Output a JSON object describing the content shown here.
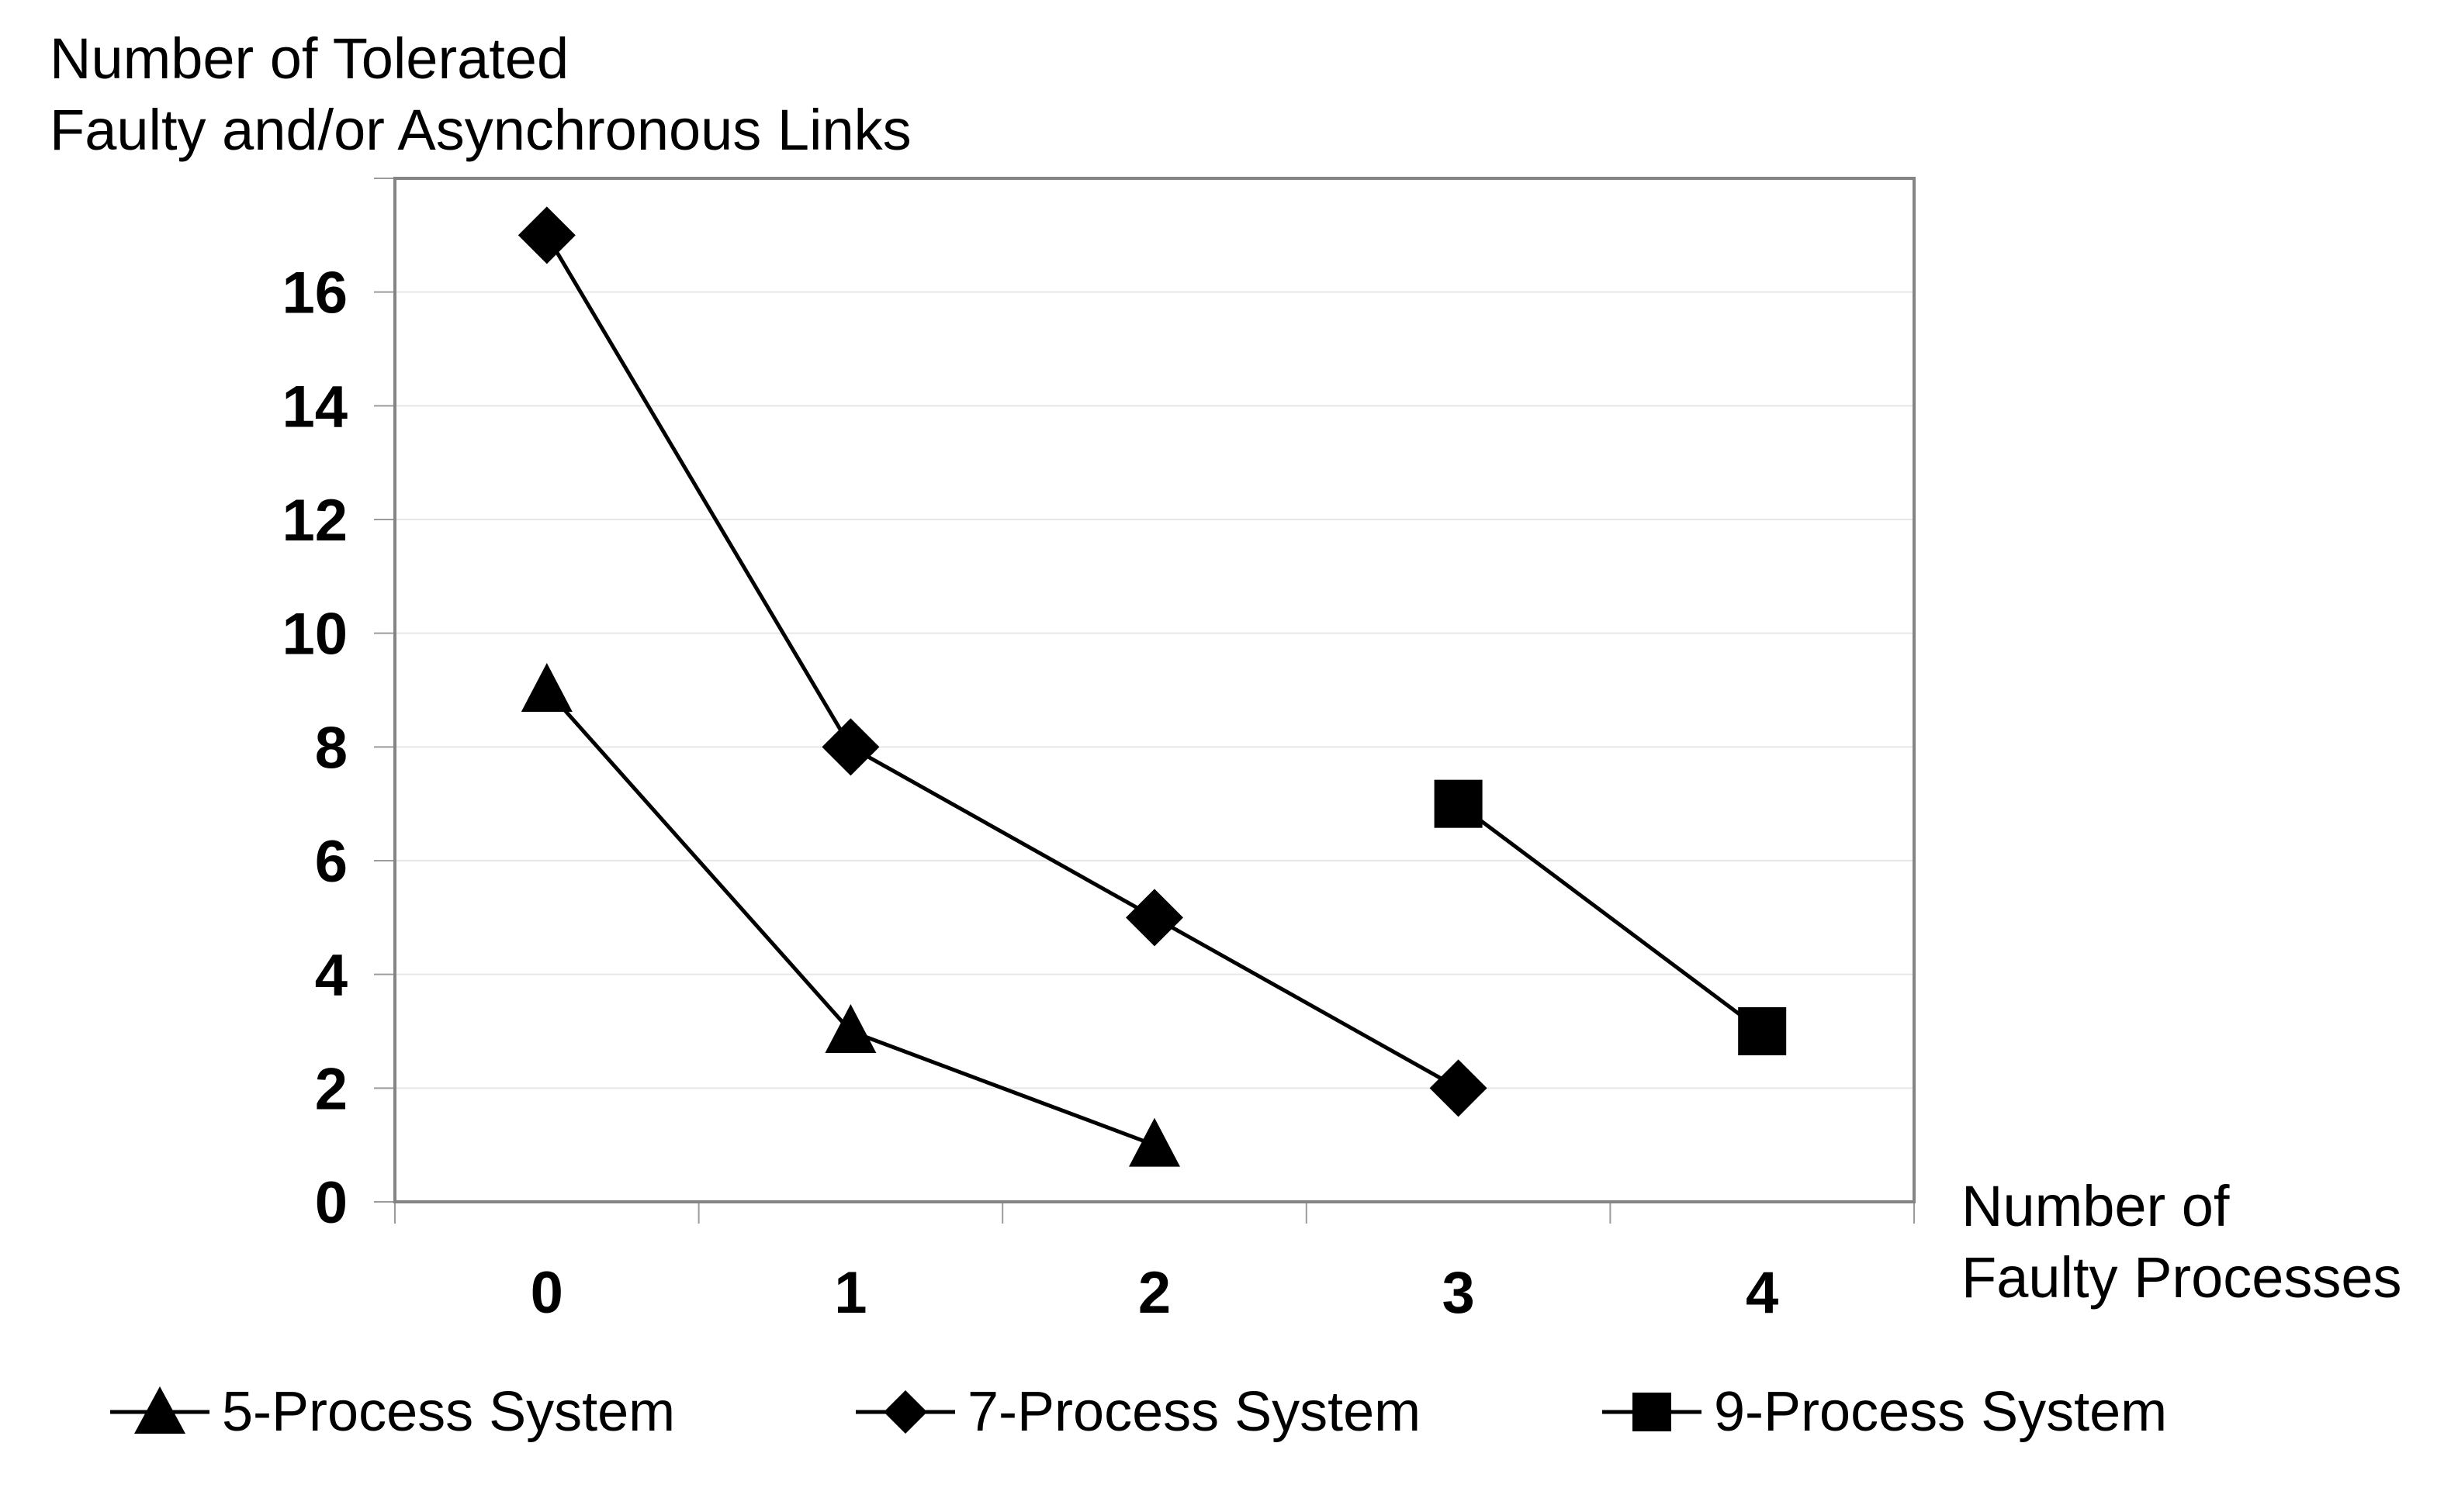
{
  "title": {
    "line1": "Number of Tolerated",
    "line2": "Faulty and/or Asynchronous Links"
  },
  "x_axis_label": {
    "line1": "Number of",
    "line2": "Faulty Processes"
  },
  "chart_data": {
    "type": "line",
    "title": "Number of Tolerated Faulty and/or Asynchronous Links",
    "xlabel": "Number of Faulty Processes",
    "ylabel": "Number of Tolerated Faulty and/or Asynchronous Links",
    "categories": [
      0,
      1,
      2,
      3,
      4
    ],
    "series": [
      {
        "name": "5-Process System",
        "marker": "triangle",
        "points": [
          [
            0,
            9
          ],
          [
            1,
            3
          ],
          [
            2,
            1
          ]
        ]
      },
      {
        "name": "7-Process System",
        "marker": "diamond",
        "points": [
          [
            0,
            17
          ],
          [
            1,
            8
          ],
          [
            2,
            5
          ],
          [
            3,
            2
          ]
        ]
      },
      {
        "name": "9-Process System",
        "marker": "square",
        "points": [
          [
            3,
            7
          ],
          [
            4,
            3
          ]
        ]
      }
    ],
    "ylim": [
      0,
      18
    ],
    "yticks": [
      0,
      2,
      4,
      6,
      8,
      10,
      12,
      14,
      16
    ],
    "grid": "horizontal-only",
    "legend_position": "bottom",
    "colors": {
      "series": "#000000",
      "grid": "#e7e7e7",
      "axis_border": "#848484",
      "tick": "#9b9b9b",
      "text": "#000000",
      "background": "#ffffff"
    }
  }
}
